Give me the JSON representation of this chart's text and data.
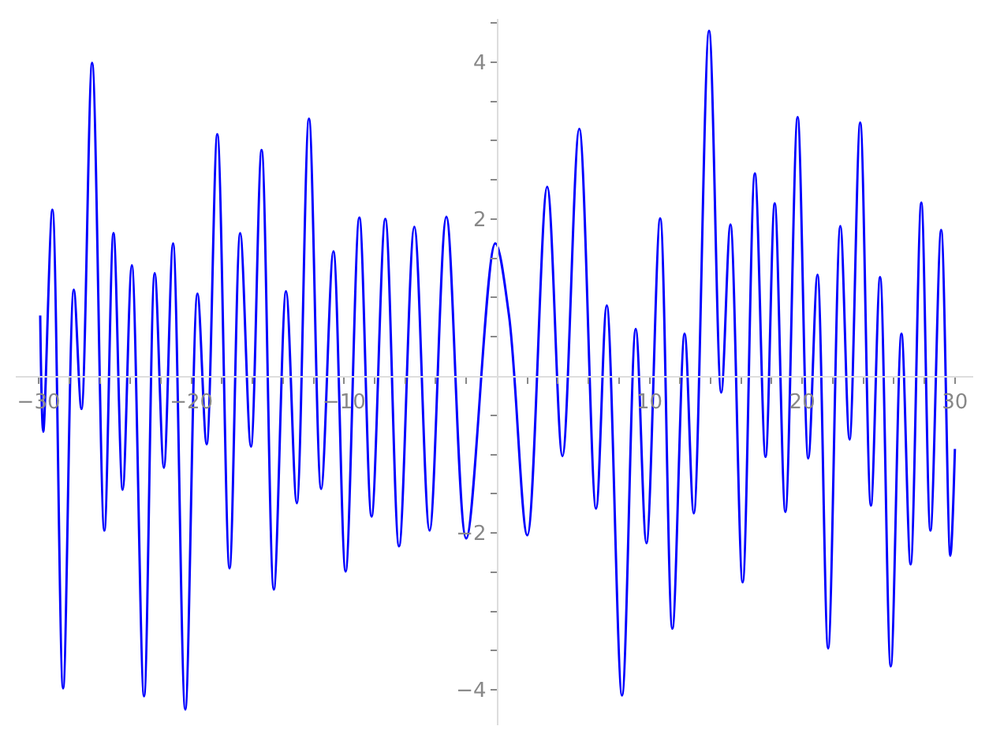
{
  "chart_data": {
    "type": "line",
    "grid": false,
    "marker": "none",
    "line_style": "solid",
    "xlim": [
      -31.5,
      31.2
    ],
    "ylim": [
      -4.45,
      4.55
    ],
    "xticks": [
      {
        "value": -30,
        "label": "−30"
      },
      {
        "value": -28,
        "label": null
      },
      {
        "value": -26,
        "label": null
      },
      {
        "value": -24,
        "label": null
      },
      {
        "value": -22,
        "label": null
      },
      {
        "value": -20,
        "label": "−20"
      },
      {
        "value": -18,
        "label": null
      },
      {
        "value": -16,
        "label": null
      },
      {
        "value": -14,
        "label": null
      },
      {
        "value": -12,
        "label": null
      },
      {
        "value": -10,
        "label": "−10"
      },
      {
        "value": -8,
        "label": null
      },
      {
        "value": -6,
        "label": null
      },
      {
        "value": -4,
        "label": null
      },
      {
        "value": -2,
        "label": null
      },
      {
        "value": 2,
        "label": null
      },
      {
        "value": 4,
        "label": null
      },
      {
        "value": 6,
        "label": null
      },
      {
        "value": 8,
        "label": null
      },
      10,
      {
        "value": 12,
        "label": null
      },
      {
        "value": 14,
        "label": null
      },
      {
        "value": 16,
        "label": null
      },
      {
        "value": 18,
        "label": null
      },
      20,
      {
        "value": 22,
        "label": null
      },
      {
        "value": 24,
        "label": null
      },
      {
        "value": 26,
        "label": null
      },
      {
        "value": 28,
        "label": null
      },
      30
    ],
    "yticks": [
      {
        "value": -4,
        "label": "−4"
      },
      {
        "value": -3.5,
        "label": null
      },
      {
        "value": -3,
        "label": null
      },
      {
        "value": -2.5,
        "label": null
      },
      {
        "value": -2,
        "label": "−2"
      },
      {
        "value": -1.5,
        "label": null
      },
      {
        "value": -1,
        "label": null
      },
      {
        "value": -0.5,
        "label": null
      },
      {
        "value": 0.5,
        "label": null
      },
      {
        "value": 1,
        "label": null
      },
      {
        "value": 1.5,
        "label": null
      },
      2,
      {
        "value": 2.5,
        "label": null
      },
      {
        "value": 3,
        "label": null
      },
      {
        "value": 3.5,
        "label": null
      },
      4,
      {
        "value": 4.5,
        "label": null
      }
    ],
    "series": [
      {
        "color": "#0000ff",
        "x": [
          -29.9,
          -29.7,
          -29.1,
          -28.4,
          -27.7,
          -27.2,
          -26.5,
          -25.7,
          -25.1,
          -24.5,
          -23.9,
          -23.1,
          -22.4,
          -21.8,
          -21.2,
          -20.4,
          -19.6,
          -19.0,
          -18.3,
          -17.5,
          -16.8,
          -16.1,
          -15.4,
          -14.6,
          -13.8,
          -13.1,
          -12.3,
          -11.5,
          -10.7,
          -9.9,
          -9.0,
          -8.2,
          -7.3,
          -6.4,
          -5.4,
          -4.4,
          -3.3,
          -2.0,
          -0.1,
          0.8,
          2.0,
          3.3,
          4.3,
          5.4,
          6.5,
          7.2,
          8.2,
          9.1,
          9.8,
          10.7,
          11.5,
          12.3,
          12.9,
          13.9,
          14.7,
          15.3,
          16.1,
          16.9,
          17.6,
          18.2,
          18.9,
          19.7,
          20.4,
          21.0,
          21.7,
          22.5,
          23.1,
          23.8,
          24.5,
          25.1,
          25.8,
          26.5,
          27.1,
          27.8,
          28.4,
          29.1,
          29.7,
          30.0
        ],
        "values": [
          0.77,
          -0.71,
          2.12,
          -3.98,
          1.1,
          -0.42,
          3.99,
          -1.97,
          1.82,
          -1.45,
          1.41,
          -4.08,
          1.31,
          -1.17,
          1.69,
          -4.25,
          1.05,
          -0.87,
          3.08,
          -2.45,
          1.82,
          -0.9,
          2.88,
          -2.72,
          1.08,
          -1.62,
          3.28,
          -1.44,
          1.59,
          -2.49,
          2.02,
          -1.79,
          2.0,
          -2.17,
          1.9,
          -1.97,
          2.03,
          -2.07,
          1.69,
          0.77,
          -2.03,
          2.41,
          -1.02,
          3.15,
          -1.69,
          0.9,
          -4.07,
          0.6,
          -2.13,
          2.01,
          -3.22,
          0.54,
          -1.75,
          4.4,
          -0.21,
          1.93,
          -2.63,
          2.58,
          -1.03,
          2.2,
          -1.73,
          3.3,
          -1.05,
          1.29,
          -3.47,
          1.91,
          -0.81,
          3.23,
          -1.65,
          1.26,
          -3.7,
          0.54,
          -2.4,
          2.21,
          -1.97,
          1.86,
          -2.29,
          -0.93
        ]
      }
    ]
  }
}
